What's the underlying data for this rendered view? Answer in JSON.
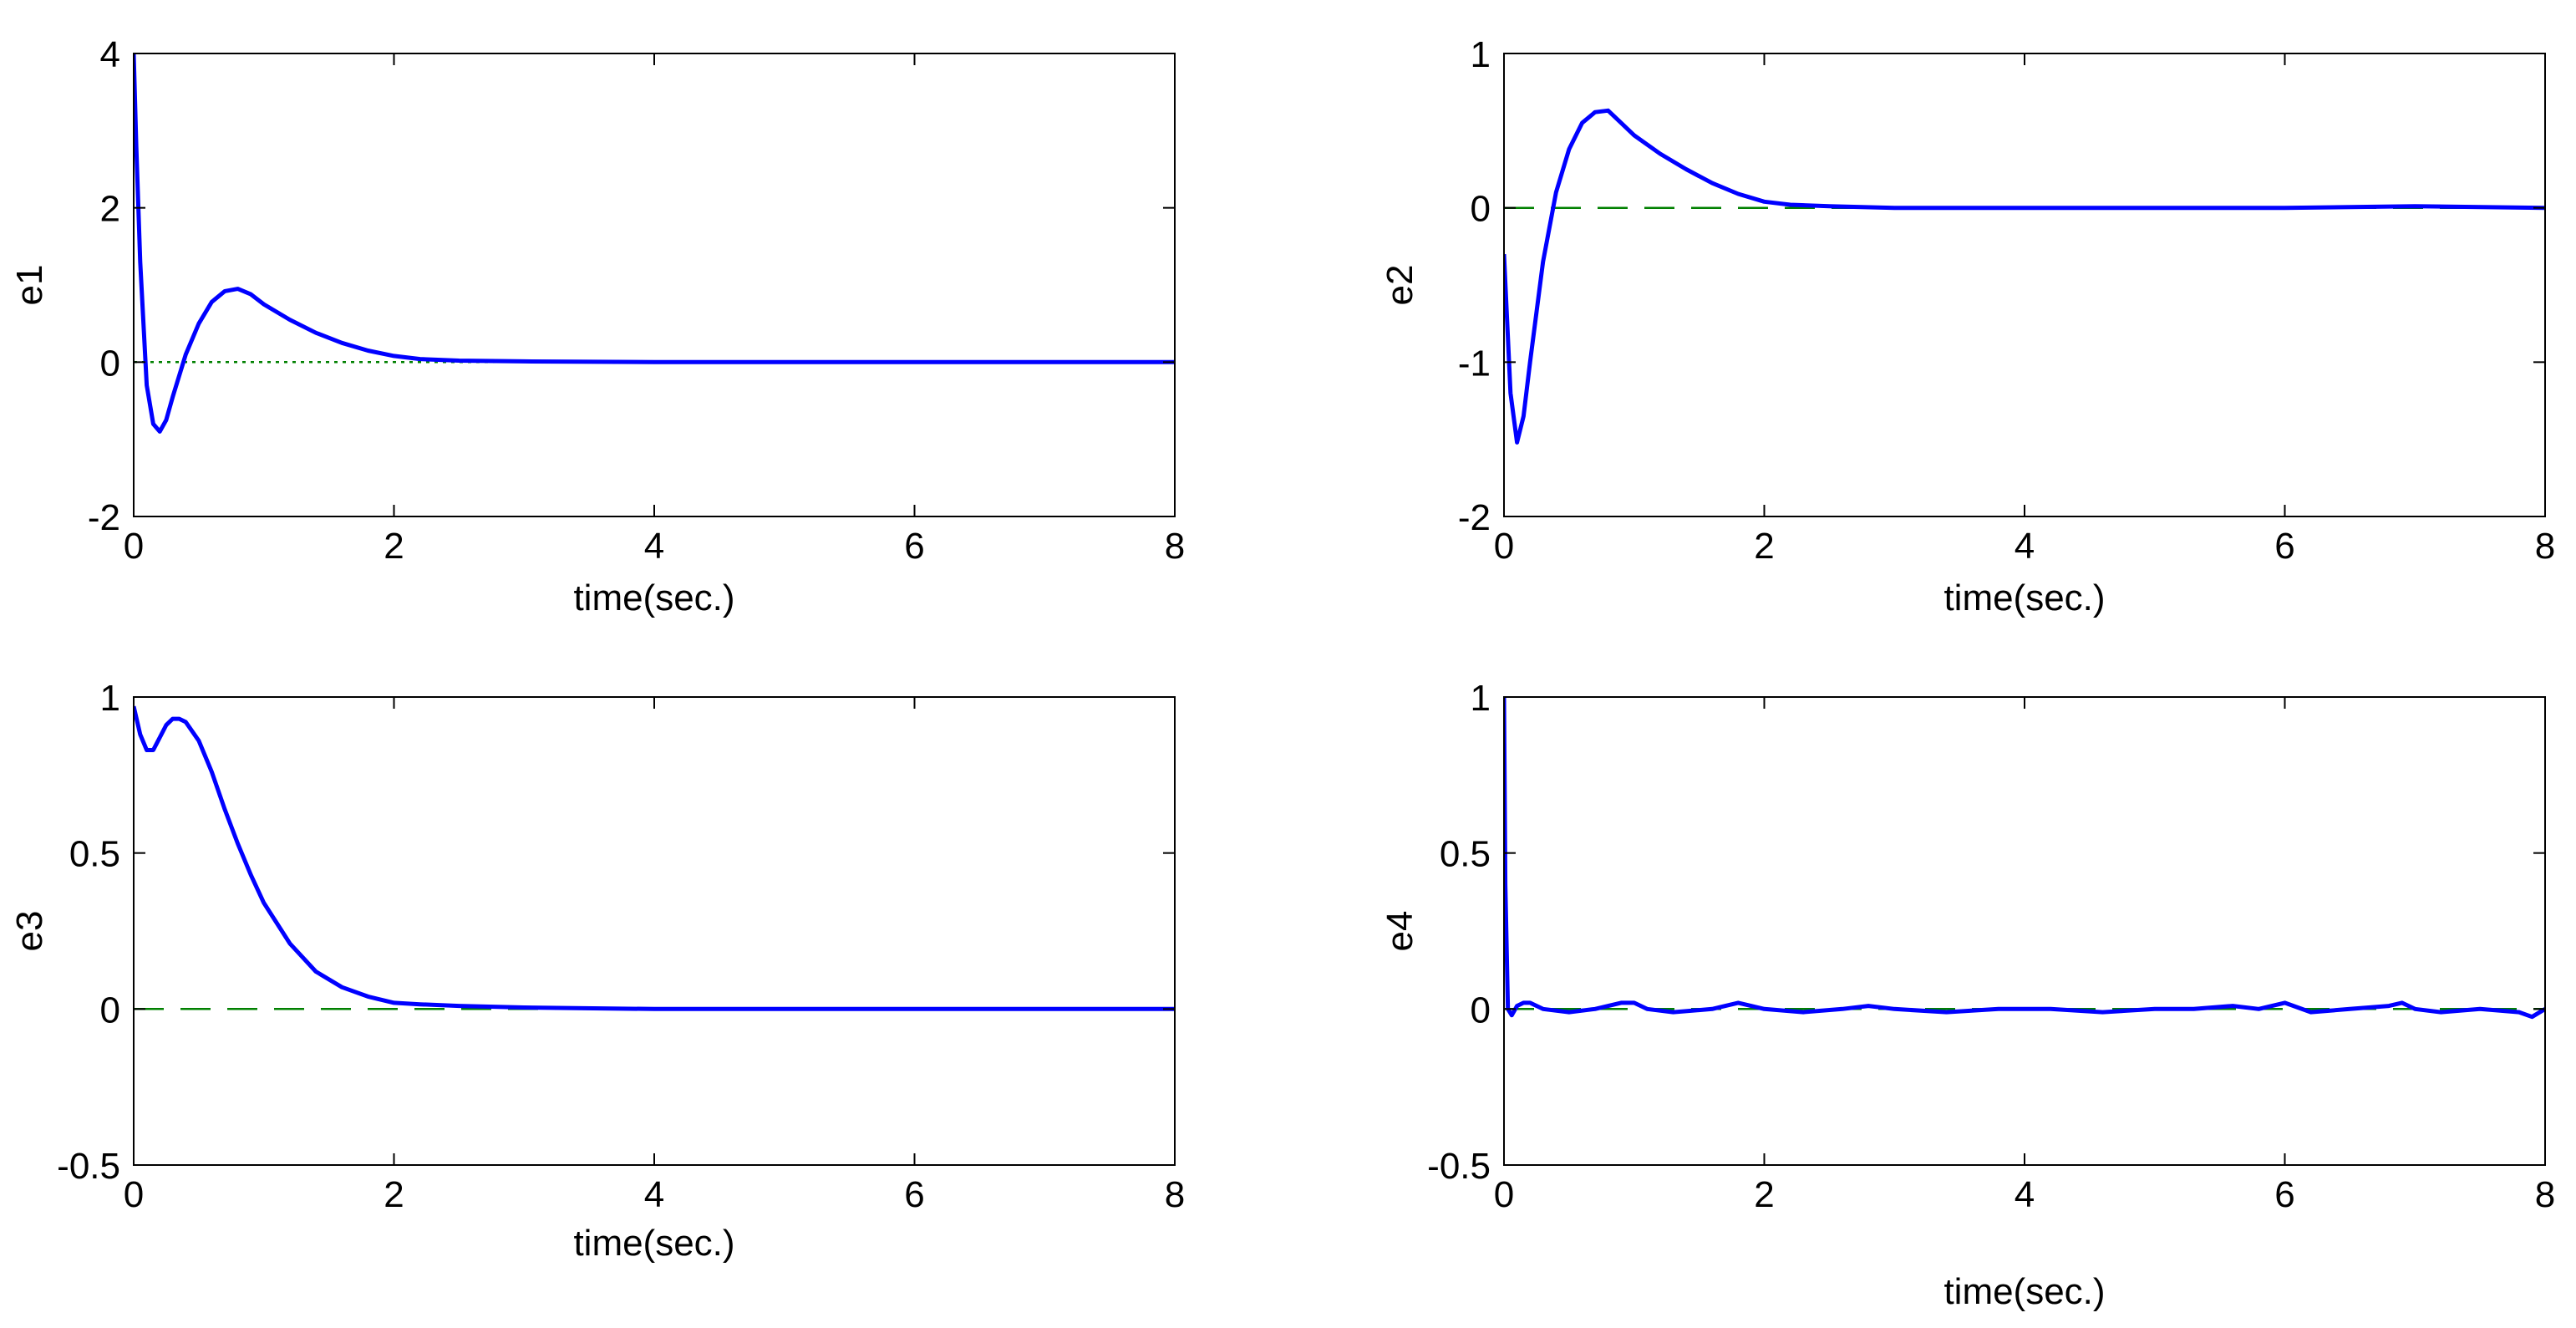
{
  "chart_data": [
    {
      "type": "line",
      "title": "",
      "xlabel": "time(sec.)",
      "ylabel": "e1",
      "xlim": [
        0,
        8
      ],
      "ylim": [
        -2,
        4
      ],
      "xticks": [
        "0",
        "2",
        "4",
        "6",
        "8"
      ],
      "yticks": [
        "-2",
        "0",
        "2",
        "4"
      ],
      "grid": false,
      "series": [
        {
          "color": "#0000ff",
          "style": "solid",
          "x": [
            0,
            0.02,
            0.05,
            0.1,
            0.15,
            0.2,
            0.25,
            0.3,
            0.4,
            0.5,
            0.6,
            0.7,
            0.8,
            0.9,
            1.0,
            1.2,
            1.4,
            1.6,
            1.8,
            2.0,
            2.2,
            2.5,
            3.0,
            4.0,
            5.0,
            6.0,
            7.0,
            8.0
          ],
          "y": [
            4.0,
            2.8,
            1.3,
            -0.3,
            -0.8,
            -0.9,
            -0.75,
            -0.45,
            0.1,
            0.5,
            0.78,
            0.92,
            0.95,
            0.88,
            0.75,
            0.55,
            0.38,
            0.25,
            0.15,
            0.08,
            0.04,
            0.02,
            0.01,
            0.0,
            0.0,
            0.0,
            0.0,
            0.0
          ]
        },
        {
          "color": "#008000",
          "style": "dotted",
          "x": [
            0,
            8
          ],
          "y": [
            0,
            0
          ]
        }
      ]
    },
    {
      "type": "line",
      "title": "",
      "xlabel": "time(sec.)",
      "ylabel": "e2",
      "xlim": [
        0,
        8
      ],
      "ylim": [
        -2,
        1
      ],
      "xticks": [
        "0",
        "2",
        "4",
        "6",
        "8"
      ],
      "yticks": [
        "-2",
        "-1",
        "0",
        "1"
      ],
      "grid": false,
      "series": [
        {
          "color": "#0000ff",
          "style": "solid",
          "x": [
            0,
            0.05,
            0.1,
            0.15,
            0.2,
            0.3,
            0.4,
            0.5,
            0.6,
            0.7,
            0.8,
            0.9,
            1.0,
            1.2,
            1.4,
            1.6,
            1.8,
            2.0,
            2.2,
            2.5,
            3.0,
            4.0,
            5.0,
            6.0,
            7.0,
            8.0
          ],
          "y": [
            -0.3,
            -1.2,
            -1.52,
            -1.35,
            -1.0,
            -0.35,
            0.1,
            0.38,
            0.55,
            0.62,
            0.63,
            0.55,
            0.47,
            0.35,
            0.25,
            0.16,
            0.09,
            0.04,
            0.02,
            0.01,
            0.0,
            0.0,
            0.0,
            0.0,
            0.01,
            0.0
          ]
        },
        {
          "color": "#008000",
          "style": "dashed",
          "x": [
            0,
            8
          ],
          "y": [
            0,
            0
          ]
        }
      ]
    },
    {
      "type": "line",
      "title": "",
      "xlabel": "time(sec.)",
      "ylabel": "e3",
      "xlim": [
        0,
        8
      ],
      "ylim": [
        -0.5,
        1
      ],
      "xticks": [
        "0",
        "2",
        "4",
        "6",
        "8"
      ],
      "yticks": [
        "-0.5",
        "0",
        "0.5",
        "1"
      ],
      "grid": false,
      "series": [
        {
          "color": "#0000ff",
          "style": "solid",
          "x": [
            0,
            0.05,
            0.1,
            0.15,
            0.2,
            0.25,
            0.3,
            0.35,
            0.4,
            0.5,
            0.6,
            0.7,
            0.8,
            0.9,
            1.0,
            1.2,
            1.4,
            1.6,
            1.8,
            2.0,
            2.2,
            2.5,
            3.0,
            4.0,
            5.0,
            6.0,
            7.0,
            8.0
          ],
          "y": [
            0.97,
            0.88,
            0.83,
            0.83,
            0.87,
            0.91,
            0.93,
            0.93,
            0.92,
            0.86,
            0.76,
            0.64,
            0.53,
            0.43,
            0.34,
            0.21,
            0.12,
            0.07,
            0.04,
            0.02,
            0.015,
            0.01,
            0.005,
            0.0,
            0.0,
            0.0,
            0.0,
            0.0
          ]
        },
        {
          "color": "#008000",
          "style": "dashed",
          "x": [
            0,
            8
          ],
          "y": [
            0,
            0
          ]
        }
      ]
    },
    {
      "type": "line",
      "title": "",
      "xlabel": "time(sec.)",
      "ylabel": "e4",
      "xlim": [
        0,
        8
      ],
      "ylim": [
        -0.5,
        1
      ],
      "xticks": [
        "0",
        "2",
        "4",
        "6",
        "8"
      ],
      "yticks": [
        "-0.5",
        "0",
        "0.5",
        "1"
      ],
      "grid": false,
      "series": [
        {
          "color": "#0000ff",
          "style": "solid",
          "x": [
            0,
            0.01,
            0.03,
            0.06,
            0.1,
            0.15,
            0.2,
            0.3,
            0.5,
            0.7,
            0.9,
            1.0,
            1.1,
            1.3,
            1.6,
            1.8,
            2.0,
            2.3,
            2.6,
            2.8,
            3.0,
            3.4,
            3.8,
            4.2,
            4.6,
            5.0,
            5.3,
            5.6,
            5.8,
            6.0,
            6.2,
            6.5,
            6.8,
            6.9,
            7.0,
            7.2,
            7.5,
            7.8,
            7.9,
            8.0
          ],
          "y": [
            1.0,
            0.4,
            0.0,
            -0.02,
            0.01,
            0.02,
            0.02,
            0.0,
            -0.01,
            0.0,
            0.02,
            0.02,
            0.0,
            -0.01,
            0.0,
            0.02,
            0.0,
            -0.01,
            0.0,
            0.01,
            0.0,
            -0.01,
            0.0,
            0.0,
            -0.01,
            0.0,
            0.0,
            0.01,
            0.0,
            0.02,
            -0.01,
            0.0,
            0.01,
            0.02,
            0.0,
            -0.01,
            0.0,
            -0.01,
            -0.025,
            0.0
          ]
        },
        {
          "color": "#008000",
          "style": "dashed",
          "x": [
            0,
            8
          ],
          "y": [
            0,
            0
          ]
        }
      ]
    }
  ]
}
